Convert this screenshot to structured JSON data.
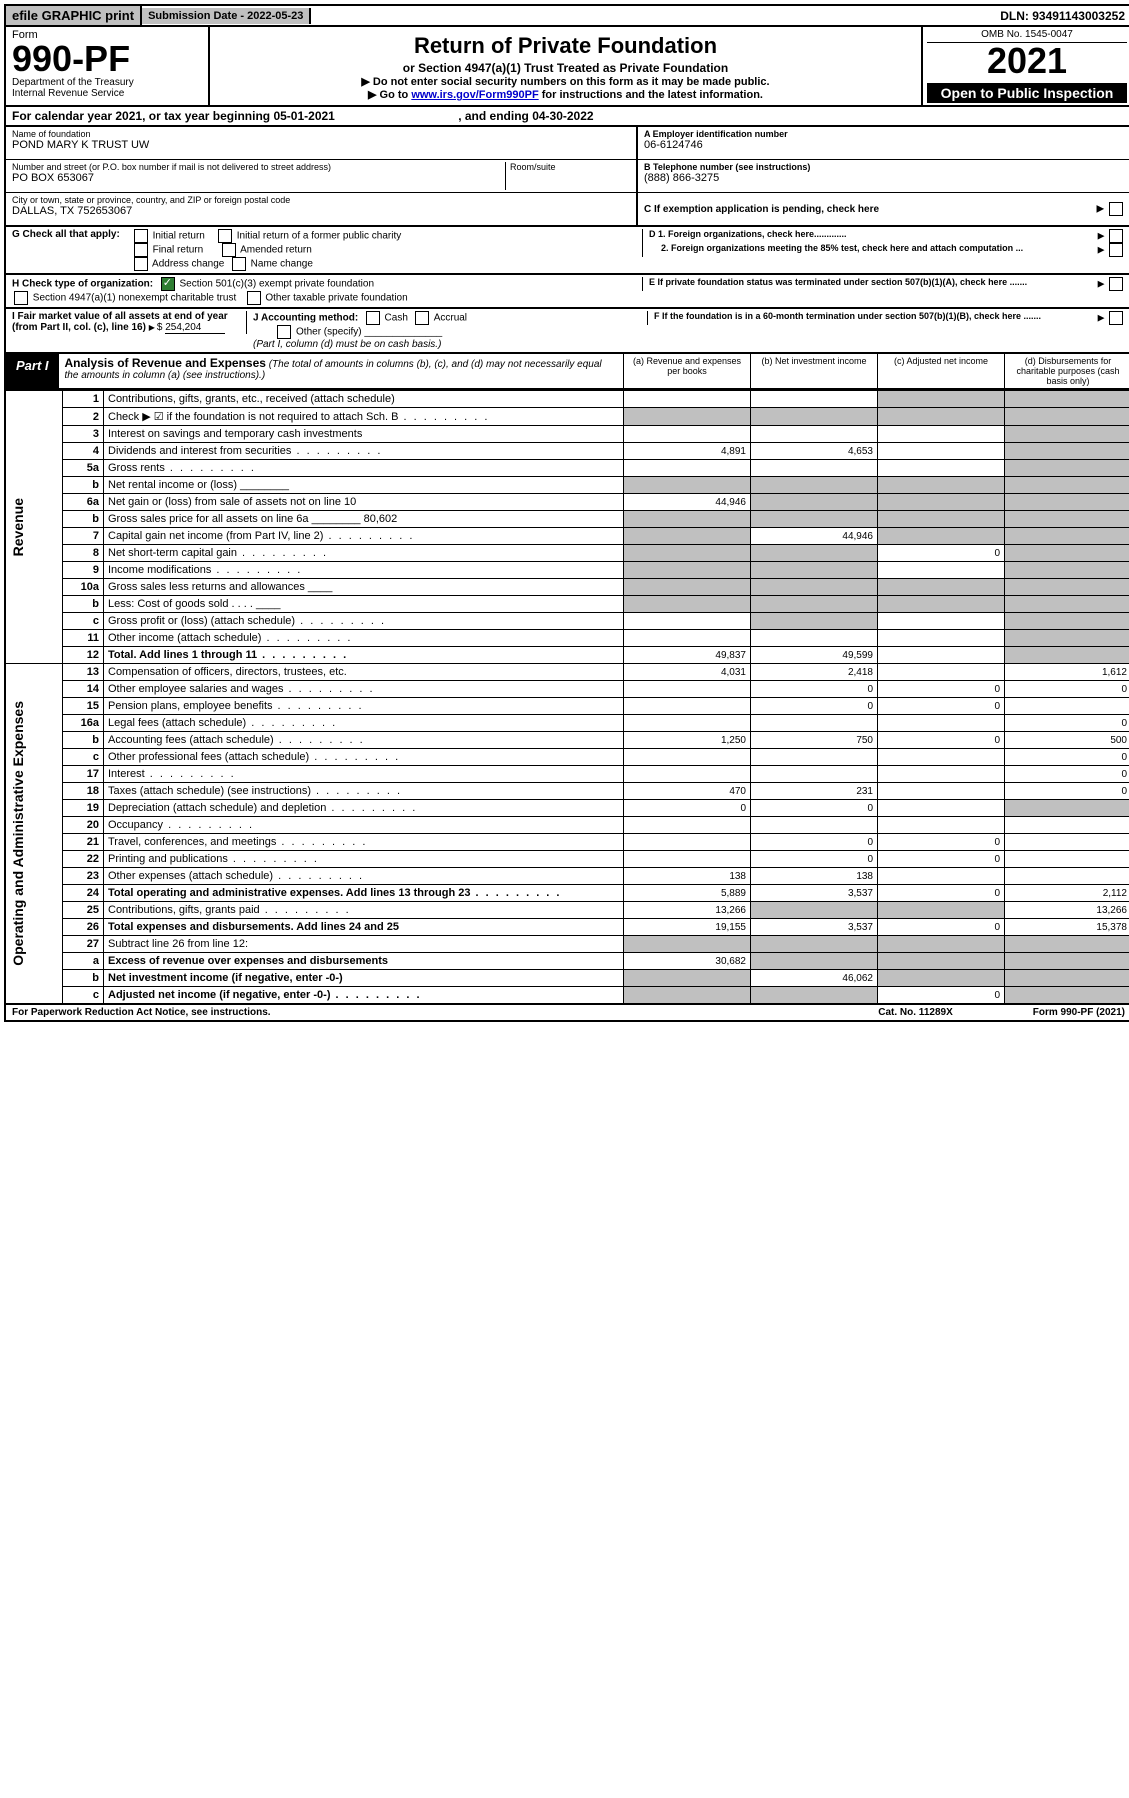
{
  "top": {
    "efile": "efile GRAPHIC print",
    "submission_label": "Submission Date - 2022-05-23",
    "dln": "DLN: 93491143003252"
  },
  "header": {
    "form_word": "Form",
    "form_number": "990-PF",
    "dept": "Department of the Treasury",
    "irs": "Internal Revenue Service",
    "title": "Return of Private Foundation",
    "subtitle": "or Section 4947(a)(1) Trust Treated as Private Foundation",
    "instr1": "▶ Do not enter social security numbers on this form as it may be made public.",
    "instr2_pre": "▶ Go to ",
    "instr2_link": "www.irs.gov/Form990PF",
    "instr2_post": " for instructions and the latest information.",
    "omb": "OMB No. 1545-0047",
    "year": "2021",
    "open": "Open to Public Inspection"
  },
  "calendar": {
    "text_pre": "For calendar year 2021, or tax year beginning ",
    "begin": "05-01-2021",
    "mid": " , and ending ",
    "end": "04-30-2022"
  },
  "ident": {
    "name_lbl": "Name of foundation",
    "name": "POND MARY K TRUST UW",
    "addr_lbl": "Number and street (or P.O. box number if mail is not delivered to street address)",
    "addr": "PO BOX 653067",
    "room_lbl": "Room/suite",
    "city_lbl": "City or town, state or province, country, and ZIP or foreign postal code",
    "city": "DALLAS, TX  752653067",
    "a_lbl": "A Employer identification number",
    "ein": "06-6124746",
    "b_lbl": "B Telephone number (see instructions)",
    "phone": "(888) 866-3275",
    "c_lbl": "C If exemption application is pending, check here",
    "d1": "D 1. Foreign organizations, check here.............",
    "d2": "2. Foreign organizations meeting the 85% test, check here and attach computation ...",
    "e_lbl": "E  If private foundation status was terminated under section 507(b)(1)(A), check here .......",
    "f_lbl": "F  If the foundation is in a 60-month termination under section 507(b)(1)(B), check here .......",
    "g_lbl": "G Check all that apply:",
    "g_opts": [
      "Initial return",
      "Initial return of a former public charity",
      "Final return",
      "Amended return",
      "Address change",
      "Name change"
    ],
    "h_lbl": "H Check type of organization:",
    "h_opts": [
      "Section 501(c)(3) exempt private foundation",
      "Section 4947(a)(1) nonexempt charitable trust",
      "Other taxable private foundation"
    ],
    "i_lbl": "I Fair market value of all assets at end of year (from Part II, col. (c), line 16)",
    "i_val": "254,204",
    "j_lbl": "J Accounting method:",
    "j_opts": [
      "Cash",
      "Accrual",
      "Other (specify)"
    ],
    "j_note": "(Part I, column (d) must be on cash basis.)"
  },
  "part1": {
    "label": "Part I",
    "title": "Analysis of Revenue and Expenses",
    "title_note": "(The total of amounts in columns (b), (c), and (d) may not necessarily equal the amounts in column (a) (see instructions).)",
    "cols": {
      "a": "(a)  Revenue and expenses per books",
      "b": "(b)  Net investment income",
      "c": "(c)  Adjusted net income",
      "d": "(d)  Disbursements for charitable purposes (cash basis only)"
    }
  },
  "sections": {
    "revenue": "Revenue",
    "expenses": "Operating and Administrative Expenses"
  },
  "rows": [
    {
      "n": "1",
      "d": "Contributions, gifts, grants, etc., received (attach schedule)",
      "a": "",
      "b": "",
      "c": "s",
      "dcol": "s"
    },
    {
      "n": "2",
      "d": "Check ▶ ☑ if the foundation is not required to attach Sch. B",
      "dots": true,
      "a": "s",
      "b": "s",
      "c": "s",
      "dcol": "s"
    },
    {
      "n": "3",
      "d": "Interest on savings and temporary cash investments",
      "a": "",
      "b": "",
      "c": "",
      "dcol": "s"
    },
    {
      "n": "4",
      "d": "Dividends and interest from securities",
      "dots": true,
      "a": "4,891",
      "b": "4,653",
      "c": "",
      "dcol": "s"
    },
    {
      "n": "5a",
      "d": "Gross rents",
      "dots": true,
      "a": "",
      "b": "",
      "c": "",
      "dcol": "s"
    },
    {
      "n": "b",
      "d": "Net rental income or (loss)  ________",
      "a": "s",
      "b": "s",
      "c": "s",
      "dcol": "s"
    },
    {
      "n": "6a",
      "d": "Net gain or (loss) from sale of assets not on line 10",
      "a": "44,946",
      "b": "s",
      "c": "s",
      "dcol": "s"
    },
    {
      "n": "b",
      "d": "Gross sales price for all assets on line 6a ________ 80,602",
      "a": "s",
      "b": "s",
      "c": "s",
      "dcol": "s"
    },
    {
      "n": "7",
      "d": "Capital gain net income (from Part IV, line 2)",
      "dots": true,
      "a": "s",
      "b": "44,946",
      "c": "s",
      "dcol": "s"
    },
    {
      "n": "8",
      "d": "Net short-term capital gain",
      "dots": true,
      "a": "s",
      "b": "s",
      "c": "0",
      "dcol": "s"
    },
    {
      "n": "9",
      "d": "Income modifications",
      "dots": true,
      "a": "s",
      "b": "s",
      "c": "",
      "dcol": "s"
    },
    {
      "n": "10a",
      "d": "Gross sales less returns and allowances  ____",
      "a": "s",
      "b": "s",
      "c": "s",
      "dcol": "s"
    },
    {
      "n": "b",
      "d": "Less: Cost of goods sold   .   .   .   .   ____",
      "a": "s",
      "b": "s",
      "c": "s",
      "dcol": "s"
    },
    {
      "n": "c",
      "d": "Gross profit or (loss) (attach schedule)",
      "dots": true,
      "a": "",
      "b": "s",
      "c": "",
      "dcol": "s"
    },
    {
      "n": "11",
      "d": "Other income (attach schedule)",
      "dots": true,
      "a": "",
      "b": "",
      "c": "",
      "dcol": "s"
    },
    {
      "n": "12",
      "d": "Total. Add lines 1 through 11",
      "dots": true,
      "bold": true,
      "a": "49,837",
      "b": "49,599",
      "c": "",
      "dcol": "s"
    }
  ],
  "exp_rows": [
    {
      "n": "13",
      "d": "Compensation of officers, directors, trustees, etc.",
      "a": "4,031",
      "b": "2,418",
      "c": "",
      "dcol": "1,612"
    },
    {
      "n": "14",
      "d": "Other employee salaries and wages",
      "dots": true,
      "a": "",
      "b": "0",
      "c": "0",
      "dcol": "0"
    },
    {
      "n": "15",
      "d": "Pension plans, employee benefits",
      "dots": true,
      "a": "",
      "b": "0",
      "c": "0",
      "dcol": ""
    },
    {
      "n": "16a",
      "d": "Legal fees (attach schedule)",
      "dots": true,
      "a": "",
      "b": "",
      "c": "",
      "dcol": "0"
    },
    {
      "n": "b",
      "d": "Accounting fees (attach schedule)",
      "dots": true,
      "a": "1,250",
      "b": "750",
      "c": "0",
      "dcol": "500"
    },
    {
      "n": "c",
      "d": "Other professional fees (attach schedule)",
      "dots": true,
      "a": "",
      "b": "",
      "c": "",
      "dcol": "0"
    },
    {
      "n": "17",
      "d": "Interest",
      "dots": true,
      "a": "",
      "b": "",
      "c": "",
      "dcol": "0"
    },
    {
      "n": "18",
      "d": "Taxes (attach schedule) (see instructions)",
      "dots": true,
      "a": "470",
      "b": "231",
      "c": "",
      "dcol": "0"
    },
    {
      "n": "19",
      "d": "Depreciation (attach schedule) and depletion",
      "dots": true,
      "a": "0",
      "b": "0",
      "c": "",
      "dcol": "s"
    },
    {
      "n": "20",
      "d": "Occupancy",
      "dots": true,
      "a": "",
      "b": "",
      "c": "",
      "dcol": ""
    },
    {
      "n": "21",
      "d": "Travel, conferences, and meetings",
      "dots": true,
      "a": "",
      "b": "0",
      "c": "0",
      "dcol": ""
    },
    {
      "n": "22",
      "d": "Printing and publications",
      "dots": true,
      "a": "",
      "b": "0",
      "c": "0",
      "dcol": ""
    },
    {
      "n": "23",
      "d": "Other expenses (attach schedule)",
      "dots": true,
      "a": "138",
      "b": "138",
      "c": "",
      "dcol": ""
    },
    {
      "n": "24",
      "d": "Total operating and administrative expenses. Add lines 13 through 23",
      "dots": true,
      "bold": true,
      "a": "5,889",
      "b": "3,537",
      "c": "0",
      "dcol": "2,112"
    },
    {
      "n": "25",
      "d": "Contributions, gifts, grants paid",
      "dots": true,
      "a": "13,266",
      "b": "s",
      "c": "s",
      "dcol": "13,266"
    },
    {
      "n": "26",
      "d": "Total expenses and disbursements. Add lines 24 and 25",
      "bold": true,
      "a": "19,155",
      "b": "3,537",
      "c": "0",
      "dcol": "15,378"
    },
    {
      "n": "27",
      "d": "Subtract line 26 from line 12:",
      "a": "s",
      "b": "s",
      "c": "s",
      "dcol": "s"
    },
    {
      "n": "a",
      "d": "Excess of revenue over expenses and disbursements",
      "bold": true,
      "a": "30,682",
      "b": "s",
      "c": "s",
      "dcol": "s"
    },
    {
      "n": "b",
      "d": "Net investment income (if negative, enter -0-)",
      "bold": true,
      "a": "s",
      "b": "46,062",
      "c": "s",
      "dcol": "s"
    },
    {
      "n": "c",
      "d": "Adjusted net income (if negative, enter -0-)",
      "bold": true,
      "dots": true,
      "a": "s",
      "b": "s",
      "c": "0",
      "dcol": "s"
    }
  ],
  "footer": {
    "left": "For Paperwork Reduction Act Notice, see instructions.",
    "mid": "Cat. No. 11289X",
    "right": "Form 990-PF (2021)"
  },
  "colors": {
    "shade": "#c0c0c0",
    "link": "#0000cc",
    "check": "#2e7d32"
  }
}
